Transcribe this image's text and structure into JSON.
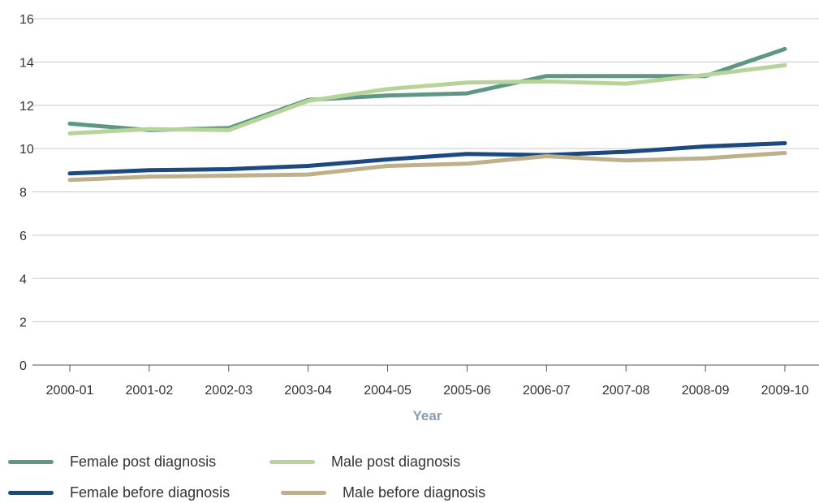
{
  "chart_data": {
    "type": "line",
    "categories": [
      "2000-01",
      "2001-02",
      "2002-03",
      "2003-04",
      "2004-05",
      "2005-06",
      "2006-07",
      "2007-08",
      "2008-09",
      "2009-10"
    ],
    "series": [
      {
        "name": "Female post diagnosis",
        "color": "#5e9785",
        "values": [
          11.15,
          10.85,
          10.95,
          12.25,
          12.45,
          12.55,
          13.35,
          13.35,
          13.35,
          14.6
        ]
      },
      {
        "name": "Male post diagnosis",
        "color": "#b6d49a",
        "values": [
          10.7,
          10.9,
          10.85,
          12.2,
          12.75,
          13.05,
          13.1,
          13.0,
          13.4,
          13.85
        ]
      },
      {
        "name": "Female before diagnosis",
        "color": "#1c4a80",
        "values": [
          8.85,
          9.0,
          9.05,
          9.2,
          9.5,
          9.75,
          9.7,
          9.85,
          10.1,
          10.25
        ]
      },
      {
        "name": "Male before diagnosis",
        "color": "#bfb08c",
        "values": [
          8.55,
          8.7,
          8.75,
          8.8,
          9.2,
          9.3,
          9.65,
          9.45,
          9.55,
          9.8
        ]
      }
    ],
    "yticks": [
      "0",
      "2",
      "4",
      "6",
      "8",
      "10",
      "12",
      "14",
      "16"
    ],
    "ylim": [
      0,
      16
    ],
    "xlabel": "Year",
    "ylabel": "",
    "grid": true,
    "legend_position": "bottom"
  }
}
